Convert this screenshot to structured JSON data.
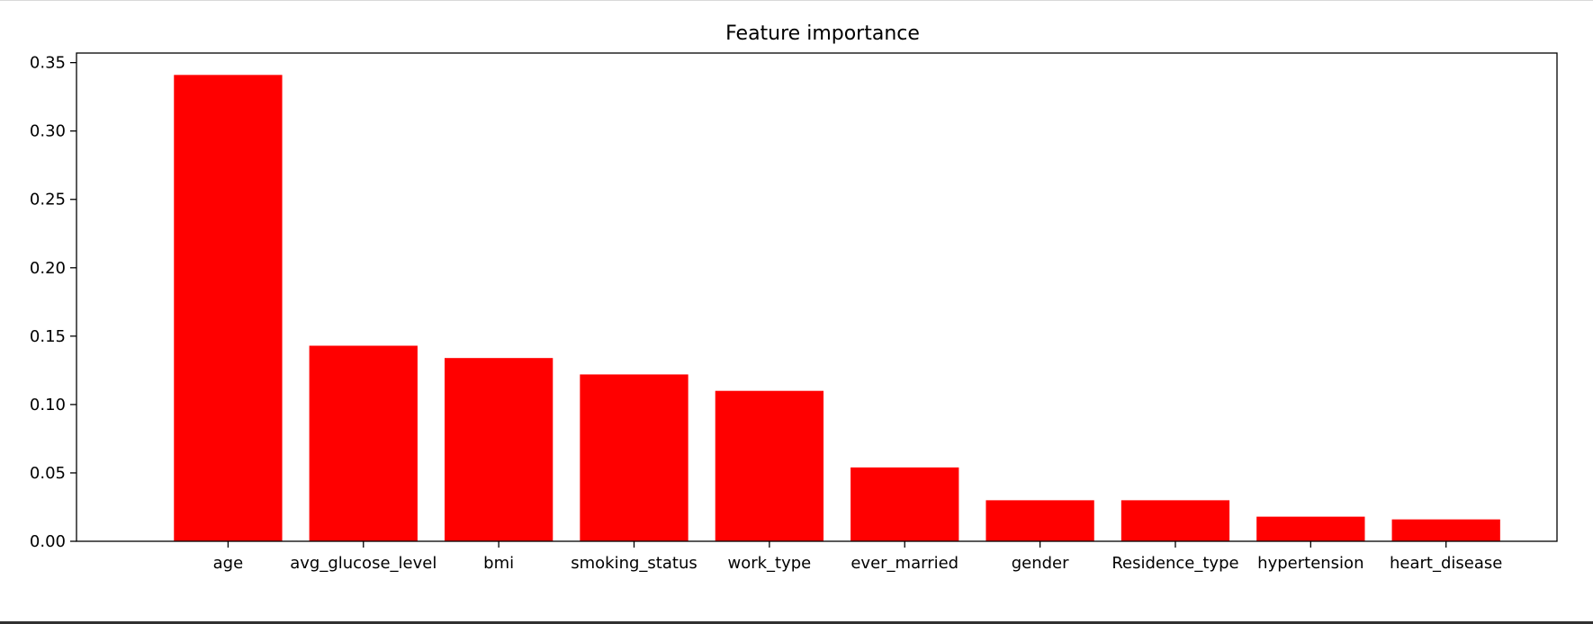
{
  "chart_data": {
    "type": "bar",
    "title": "Feature importance",
    "xlabel": "",
    "ylabel": "",
    "categories": [
      "age",
      "avg_glucose_level",
      "bmi",
      "smoking_status",
      "work_type",
      "ever_married",
      "gender",
      "Residence_type",
      "hypertension",
      "heart_disease"
    ],
    "values": [
      0.341,
      0.143,
      0.134,
      0.122,
      0.11,
      0.054,
      0.03,
      0.03,
      0.018,
      0.016
    ],
    "ylim": [
      0,
      0.357
    ],
    "yticks": [
      "0.00",
      "0.05",
      "0.10",
      "0.15",
      "0.20",
      "0.25",
      "0.30",
      "0.35"
    ],
    "bar_color": "#ff0000",
    "grid": false,
    "legend": "none"
  }
}
